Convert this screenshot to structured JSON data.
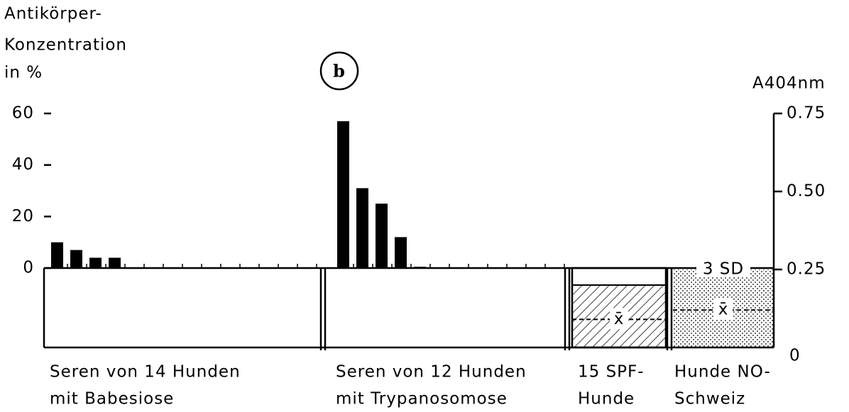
{
  "chart_data": {
    "type": "bar",
    "panel_label": "b",
    "ylabel": [
      "Antikörper-",
      "Konzentration",
      "in %"
    ],
    "y2label": "A404nm",
    "ylim": [
      0,
      60
    ],
    "yticks": [
      0,
      20,
      40,
      60
    ],
    "y2lim": [
      0,
      0.75
    ],
    "y2ticks": [
      0,
      0.25,
      {
        "value": 0.5,
        "label": "0.50"
      },
      0.75
    ],
    "color": "#000000",
    "groups": [
      {
        "label": [
          "Seren von 14 Hunden",
          "mit Babesiose"
        ],
        "values": [
          10,
          7,
          4,
          4,
          0,
          0,
          0,
          0,
          0,
          0,
          0,
          0,
          0,
          0
        ]
      },
      {
        "label": [
          "Seren von 12 Hunden",
          "mit Trypanosomose"
        ],
        "values": [
          57,
          31,
          25,
          12,
          0.5,
          0,
          0,
          0,
          0,
          0,
          0,
          0
        ]
      }
    ],
    "references": [
      {
        "label": [
          "15 SPF-",
          "Hunde"
        ],
        "upper": 0.2,
        "mean": 0.09,
        "mean_label": "x̄",
        "pattern": "hatch"
      },
      {
        "label": [
          "Hunde NO-",
          "Schweiz"
        ],
        "upper": 0.25,
        "upper_label": "3 SD",
        "mean": 0.12,
        "mean_label": "x̄",
        "pattern": "dots"
      }
    ]
  }
}
